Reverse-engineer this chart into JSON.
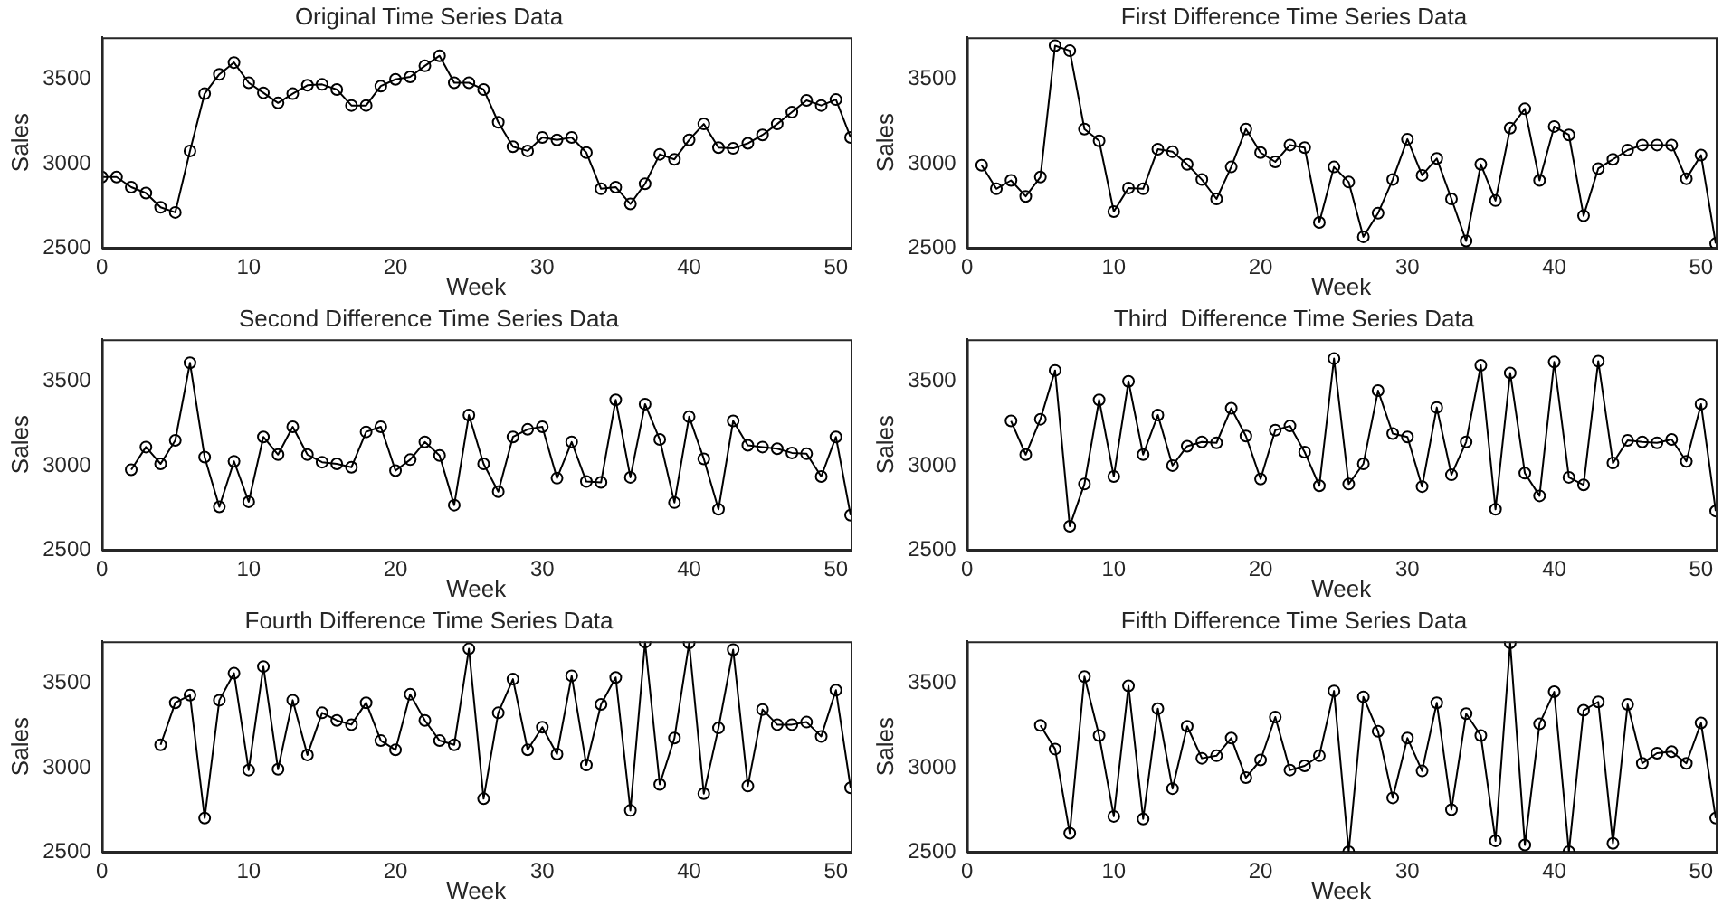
{
  "chart_data": [
    {
      "type": "line",
      "title": "Original Time Series Data",
      "xlabel": "Week",
      "ylabel": "Sales",
      "color": "#000000",
      "marker": "circle",
      "grid": false,
      "legend": false,
      "xlim": [
        0,
        51
      ],
      "ylim": [
        2500,
        3750
      ],
      "xticks": [
        0,
        10,
        20,
        30,
        40,
        50
      ],
      "yticks": [
        2500,
        3000,
        3500
      ],
      "x": [
        0,
        1,
        2,
        3,
        4,
        5,
        6,
        7,
        8,
        9,
        10,
        11,
        12,
        13,
        14,
        15,
        16,
        17,
        18,
        19,
        20,
        21,
        22,
        23,
        24,
        25,
        26,
        27,
        28,
        29,
        30,
        31,
        32,
        33,
        34,
        35,
        36,
        37,
        38,
        39,
        40,
        41,
        42,
        43,
        44,
        45,
        46,
        47,
        48,
        49,
        50,
        51
      ],
      "values": [
        2920,
        2920,
        2860,
        2825,
        2740,
        2710,
        3075,
        3415,
        3530,
        3600,
        3480,
        3420,
        3360,
        3415,
        3465,
        3470,
        3440,
        3345,
        3345,
        3460,
        3500,
        3515,
        3580,
        3640,
        3480,
        3480,
        3440,
        3245,
        3100,
        3075,
        3155,
        3140,
        3155,
        3065,
        2850,
        2860,
        2760,
        2880,
        3055,
        3025,
        3140,
        3235,
        3095,
        3090,
        3120,
        3170,
        3235,
        3305,
        3375,
        3345,
        3380,
        3155
      ]
    },
    {
      "type": "line",
      "title": "First Difference Time Series Data",
      "xlabel": "Week",
      "ylabel": "Sales",
      "color": "#000000",
      "marker": "circle",
      "grid": false,
      "legend": false,
      "xlim": [
        0,
        51
      ],
      "ylim": [
        2500,
        3750
      ],
      "xticks": [
        0,
        10,
        20,
        30,
        40,
        50
      ],
      "yticks": [
        2500,
        3000,
        3500
      ],
      "x": [
        1,
        2,
        3,
        4,
        5,
        6,
        7,
        8,
        9,
        10,
        11,
        12,
        13,
        14,
        15,
        16,
        17,
        18,
        19,
        20,
        21,
        22,
        23,
        24,
        25,
        26,
        27,
        28,
        29,
        30,
        31,
        32,
        33,
        34,
        35,
        36,
        37,
        38,
        39,
        40,
        41,
        42,
        43,
        44,
        45,
        46,
        47,
        48,
        49,
        50,
        51
      ],
      "values": [
        2990,
        2850,
        2900,
        2805,
        2920,
        3700,
        3670,
        3205,
        3135,
        2715,
        2855,
        2850,
        3085,
        3070,
        2995,
        2905,
        2790,
        2980,
        3205,
        3065,
        3010,
        3110,
        3095,
        2650,
        2980,
        2890,
        2565,
        2705,
        2905,
        3145,
        2930,
        3030,
        2790,
        2540,
        2995,
        2780,
        3210,
        3325,
        2900,
        3220,
        3170,
        2690,
        2970,
        3025,
        3080,
        3110,
        3110,
        3110,
        2910,
        3050,
        2525
      ]
    },
    {
      "type": "line",
      "title": "Second Difference Time Series Data",
      "xlabel": "Week",
      "ylabel": "Sales",
      "color": "#000000",
      "marker": "circle",
      "grid": false,
      "legend": false,
      "xlim": [
        0,
        51
      ],
      "ylim": [
        2500,
        3750
      ],
      "xticks": [
        0,
        10,
        20,
        30,
        40,
        50
      ],
      "yticks": [
        2500,
        3000,
        3500
      ],
      "x": [
        2,
        3,
        4,
        5,
        6,
        7,
        8,
        9,
        10,
        11,
        12,
        13,
        14,
        15,
        16,
        17,
        18,
        19,
        20,
        21,
        22,
        23,
        24,
        25,
        26,
        27,
        28,
        29,
        30,
        31,
        32,
        33,
        34,
        35,
        36,
        37,
        38,
        39,
        40,
        41,
        42,
        43,
        44,
        45,
        46,
        47,
        48,
        49,
        50,
        51
      ],
      "values": [
        2975,
        3110,
        3010,
        3150,
        3610,
        3050,
        2755,
        3025,
        2785,
        3170,
        3065,
        3230,
        3065,
        3020,
        3010,
        2990,
        3200,
        3230,
        2970,
        3035,
        3140,
        3060,
        2765,
        3300,
        3010,
        2845,
        3170,
        3215,
        3230,
        2925,
        3140,
        2905,
        2900,
        3390,
        2930,
        3365,
        3155,
        2780,
        3290,
        3040,
        2740,
        3265,
        3120,
        3110,
        3100,
        3075,
        3070,
        2935,
        3170,
        2705
      ]
    },
    {
      "type": "line",
      "title": "Third  Difference Time Series Data",
      "xlabel": "Week",
      "ylabel": "Sales",
      "color": "#000000",
      "marker": "circle",
      "grid": false,
      "legend": false,
      "xlim": [
        0,
        51
      ],
      "ylim": [
        2500,
        3750
      ],
      "xticks": [
        0,
        10,
        20,
        30,
        40,
        50
      ],
      "yticks": [
        2500,
        3000,
        3500
      ],
      "x": [
        3,
        4,
        5,
        6,
        7,
        8,
        9,
        10,
        11,
        12,
        13,
        14,
        15,
        16,
        17,
        18,
        19,
        20,
        21,
        22,
        23,
        24,
        25,
        26,
        27,
        28,
        29,
        30,
        31,
        32,
        33,
        34,
        35,
        36,
        37,
        38,
        39,
        40,
        41,
        42,
        43,
        44,
        45,
        46,
        47,
        48,
        49,
        50,
        51
      ],
      "values": [
        3265,
        3065,
        3275,
        3565,
        2640,
        2890,
        3390,
        2935,
        3500,
        3065,
        3300,
        3000,
        3115,
        3140,
        3135,
        3340,
        3175,
        2920,
        3210,
        3235,
        3080,
        2880,
        3635,
        2890,
        3010,
        3445,
        3190,
        3170,
        2875,
        3345,
        2945,
        3140,
        3595,
        2740,
        3550,
        2955,
        2820,
        3615,
        2930,
        2885,
        3620,
        3015,
        3150,
        3140,
        3135,
        3155,
        3025,
        3365,
        2730
      ]
    },
    {
      "type": "line",
      "title": "Fourth Difference Time Series Data",
      "xlabel": "Week",
      "ylabel": "Sales",
      "color": "#000000",
      "marker": "circle",
      "grid": false,
      "legend": false,
      "xlim": [
        0,
        51
      ],
      "ylim": [
        2500,
        3750
      ],
      "xticks": [
        0,
        10,
        20,
        30,
        40,
        50
      ],
      "yticks": [
        2500,
        3000,
        3500
      ],
      "x": [
        4,
        5,
        6,
        7,
        8,
        9,
        10,
        11,
        12,
        13,
        14,
        15,
        16,
        17,
        18,
        19,
        20,
        21,
        22,
        23,
        24,
        25,
        26,
        27,
        28,
        29,
        30,
        31,
        32,
        33,
        34,
        35,
        36,
        37,
        38,
        39,
        40,
        41,
        42,
        43,
        44,
        45,
        46,
        47,
        48,
        49,
        50,
        51
      ],
      "values": [
        3135,
        3385,
        3430,
        2700,
        3400,
        3560,
        2985,
        3600,
        2990,
        3400,
        3075,
        3325,
        3280,
        3255,
        3385,
        3160,
        3105,
        3435,
        3280,
        3160,
        3135,
        3705,
        2815,
        3325,
        3525,
        3105,
        3240,
        3080,
        3545,
        3015,
        3375,
        3535,
        2745,
        3745,
        2900,
        3175,
        3740,
        2845,
        3235,
        3700,
        2890,
        3345,
        3255,
        3255,
        3270,
        3185,
        3460,
        2880
      ]
    },
    {
      "type": "line",
      "title": "Fifth Difference Time Series Data",
      "xlabel": "Week",
      "ylabel": "Sales",
      "color": "#000000",
      "marker": "circle",
      "grid": false,
      "legend": false,
      "xlim": [
        0,
        51
      ],
      "ylim": [
        2500,
        3750
      ],
      "xticks": [
        0,
        10,
        20,
        30,
        40,
        50
      ],
      "yticks": [
        2500,
        3000,
        3500
      ],
      "x": [
        5,
        6,
        7,
        8,
        9,
        10,
        11,
        12,
        13,
        14,
        15,
        16,
        17,
        18,
        19,
        20,
        21,
        22,
        23,
        24,
        25,
        26,
        27,
        28,
        29,
        30,
        31,
        32,
        33,
        34,
        35,
        36,
        37,
        38,
        39,
        40,
        41,
        42,
        43,
        44,
        45,
        46,
        47,
        48,
        49,
        50,
        51
      ],
      "values": [
        3250,
        3110,
        2610,
        3540,
        3190,
        2710,
        3485,
        2695,
        3350,
        2875,
        3245,
        3055,
        3070,
        3175,
        2940,
        3045,
        3300,
        2985,
        3010,
        3070,
        3455,
        2500,
        3420,
        3215,
        2820,
        3175,
        2980,
        3385,
        2750,
        3320,
        3190,
        2565,
        3740,
        2540,
        3260,
        3450,
        2500,
        3340,
        3390,
        2550,
        3375,
        3025,
        3085,
        3095,
        3025,
        3265,
        2700
      ]
    }
  ]
}
